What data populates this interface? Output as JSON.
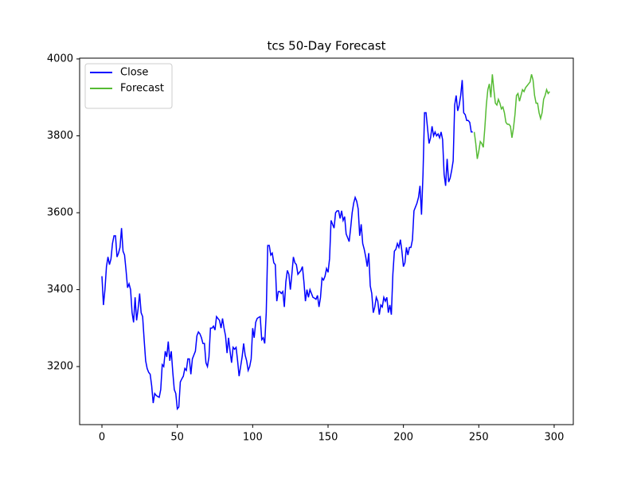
{
  "chart_data": {
    "type": "line",
    "title": "tcs 50-Day Forecast",
    "xlim": [
      -14.8,
      312.7
    ],
    "ylim": [
      3049,
      4002
    ],
    "xticks": [
      0,
      50,
      100,
      150,
      200,
      250,
      300
    ],
    "yticks": [
      3200,
      3400,
      3600,
      3800,
      4000
    ],
    "grid": false,
    "legend": "upper left",
    "series": [
      {
        "name": "Close",
        "color": "#0000ff",
        "x": [
          0,
          1,
          2,
          3,
          4,
          5,
          6,
          7,
          8,
          9,
          10,
          11,
          12,
          13,
          14,
          15,
          16,
          17,
          18,
          19,
          20,
          21,
          22,
          23,
          24,
          25,
          26,
          27,
          28,
          29,
          30,
          31,
          32,
          33,
          34,
          35,
          36,
          37,
          38,
          39,
          40,
          41,
          42,
          43,
          44,
          45,
          46,
          47,
          48,
          49,
          50,
          51,
          52,
          53,
          54,
          55,
          56,
          57,
          58,
          59,
          60,
          61,
          62,
          63,
          64,
          65,
          66,
          67,
          68,
          69,
          70,
          71,
          72,
          73,
          74,
          75,
          76,
          77,
          78,
          79,
          80,
          81,
          82,
          83,
          84,
          85,
          86,
          87,
          88,
          89,
          90,
          91,
          92,
          93,
          94,
          95,
          96,
          97,
          98,
          99,
          100,
          101,
          102,
          103,
          104,
          105,
          106,
          107,
          108,
          109,
          110,
          111,
          112,
          113,
          114,
          115,
          116,
          117,
          118,
          119,
          120,
          121,
          122,
          123,
          124,
          125,
          126,
          127,
          128,
          129,
          130,
          131,
          132,
          133,
          134,
          135,
          136,
          137,
          138,
          139,
          140,
          141,
          142,
          143,
          144,
          145,
          146,
          147,
          148,
          149,
          150,
          151,
          152,
          153,
          154,
          155,
          156,
          157,
          158,
          159,
          160,
          161,
          162,
          163,
          164,
          165,
          166,
          167,
          168,
          169,
          170,
          171,
          172,
          173,
          174,
          175,
          176,
          177,
          178,
          179,
          180,
          181,
          182,
          183,
          184,
          185,
          186,
          187,
          188,
          189,
          190,
          191,
          192,
          193,
          194,
          195,
          196,
          197,
          198,
          199,
          200,
          201,
          202,
          203,
          204,
          205,
          206,
          207,
          208,
          209,
          210,
          211,
          212,
          213,
          214,
          215,
          216,
          217,
          218,
          219,
          220,
          221,
          222,
          223,
          224,
          225,
          226,
          227,
          228,
          229,
          230,
          231,
          232,
          233,
          234,
          235,
          236,
          237,
          238,
          239,
          240,
          241,
          242,
          243,
          244,
          245,
          246
        ],
        "values": [
          3435,
          3360,
          3400,
          3460,
          3485,
          3465,
          3480,
          3520,
          3540,
          3540,
          3485,
          3495,
          3510,
          3560,
          3500,
          3490,
          3450,
          3405,
          3415,
          3400,
          3340,
          3315,
          3380,
          3320,
          3350,
          3390,
          3340,
          3330,
          3270,
          3215,
          3195,
          3185,
          3180,
          3150,
          3105,
          3130,
          3125,
          3122,
          3120,
          3140,
          3205,
          3200,
          3240,
          3225,
          3265,
          3215,
          3240,
          3185,
          3140,
          3130,
          3090,
          3095,
          3160,
          3168,
          3175,
          3195,
          3190,
          3220,
          3220,
          3180,
          3220,
          3230,
          3240,
          3280,
          3290,
          3285,
          3275,
          3260,
          3260,
          3210,
          3200,
          3225,
          3300,
          3300,
          3305,
          3295,
          3330,
          3325,
          3320,
          3300,
          3325,
          3300,
          3280,
          3235,
          3275,
          3240,
          3210,
          3250,
          3245,
          3250,
          3215,
          3175,
          3200,
          3225,
          3260,
          3230,
          3215,
          3190,
          3200,
          3220,
          3300,
          3275,
          3315,
          3325,
          3328,
          3330,
          3270,
          3275,
          3260,
          3340,
          3515,
          3515,
          3490,
          3495,
          3470,
          3465,
          3370,
          3395,
          3395,
          3390,
          3395,
          3355,
          3420,
          3450,
          3440,
          3400,
          3440,
          3485,
          3470,
          3465,
          3440,
          3445,
          3450,
          3460,
          3420,
          3370,
          3400,
          3380,
          3400,
          3390,
          3380,
          3378,
          3375,
          3385,
          3355,
          3380,
          3430,
          3425,
          3435,
          3455,
          3445,
          3480,
          3580,
          3570,
          3560,
          3600,
          3605,
          3605,
          3585,
          3605,
          3580,
          3590,
          3545,
          3535,
          3525,
          3560,
          3600,
          3625,
          3640,
          3630,
          3610,
          3540,
          3570,
          3520,
          3505,
          3485,
          3460,
          3495,
          3410,
          3390,
          3340,
          3355,
          3380,
          3370,
          3335,
          3360,
          3355,
          3380,
          3370,
          3380,
          3340,
          3360,
          3335,
          3440,
          3500,
          3505,
          3520,
          3510,
          3530,
          3500,
          3460,
          3470,
          3510,
          3490,
          3510,
          3510,
          3530,
          3605,
          3615,
          3625,
          3640,
          3670,
          3595,
          3700,
          3860,
          3860,
          3820,
          3780,
          3795,
          3825,
          3800,
          3810,
          3800,
          3805,
          3795,
          3810,
          3790,
          3700,
          3670,
          3740,
          3680,
          3690,
          3710,
          3735,
          3880,
          3905,
          3865,
          3880,
          3905,
          3945,
          3860,
          3855,
          3840,
          3840,
          3835,
          3810,
          3810
        ]
      },
      {
        "name": "Forecast",
        "color": "#55bb33",
        "x": [
          247,
          248,
          249,
          250,
          251,
          252,
          253,
          254,
          255,
          256,
          257,
          258,
          259,
          260,
          261,
          262,
          263,
          264,
          265,
          266,
          267,
          268,
          269,
          270,
          271,
          272,
          273,
          274,
          275,
          276,
          277,
          278,
          279,
          280,
          281,
          282,
          283,
          284,
          285,
          286,
          287,
          288,
          289,
          290,
          291,
          292,
          293,
          294,
          295,
          296,
          297
        ],
        "values": [
          3810,
          3780,
          3740,
          3760,
          3785,
          3780,
          3770,
          3820,
          3880,
          3920,
          3935,
          3900,
          3960,
          3920,
          3885,
          3880,
          3895,
          3885,
          3870,
          3875,
          3860,
          3835,
          3830,
          3830,
          3825,
          3795,
          3820,
          3855,
          3905,
          3910,
          3890,
          3905,
          3920,
          3915,
          3925,
          3930,
          3935,
          3940,
          3960,
          3945,
          3905,
          3885,
          3885,
          3860,
          3845,
          3860,
          3895,
          3905,
          3920,
          3910,
          3915
        ]
      }
    ]
  }
}
